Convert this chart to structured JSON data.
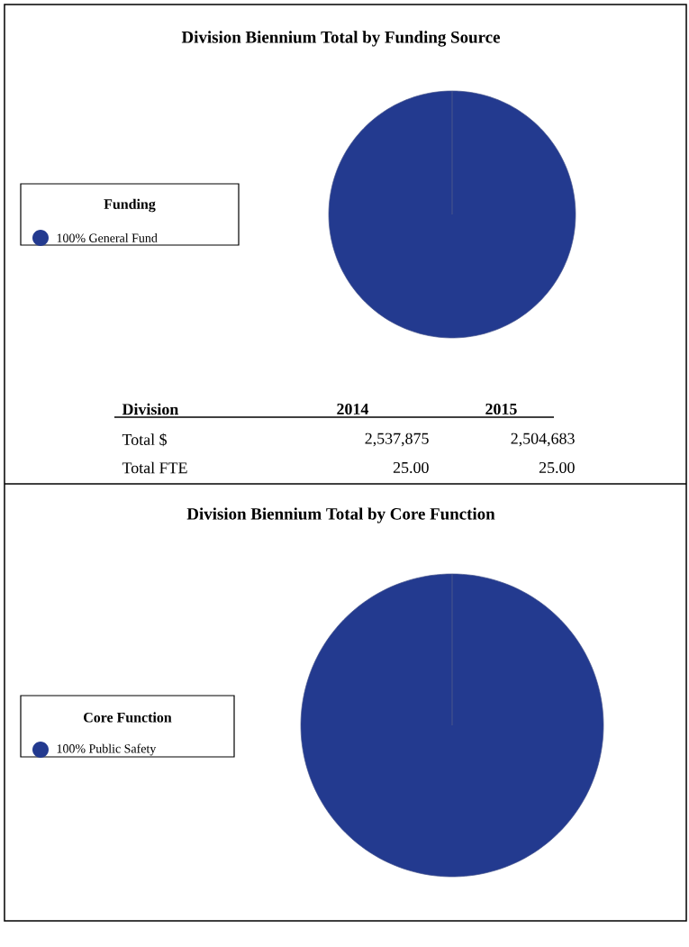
{
  "chart_data": [
    {
      "type": "pie",
      "title": "Division Biennium Total by Funding Source",
      "legend_title": "Funding",
      "legend": "left",
      "categories": [
        "100% General Fund"
      ],
      "values": [
        100
      ],
      "colors": [
        "#233a8f"
      ],
      "annotations": [
        "Division",
        "2014",
        "2015",
        "Total $",
        "2,537,875",
        "2,504,683",
        "Total FTE",
        "25.00",
        "25.00"
      ]
    },
    {
      "type": "pie",
      "title": "Division Biennium Total by Core Function",
      "legend_title": "Core Function",
      "legend": "left",
      "categories": [
        "100% Public Safety"
      ],
      "values": [
        100
      ],
      "colors": [
        "#233a8f"
      ]
    }
  ]
}
